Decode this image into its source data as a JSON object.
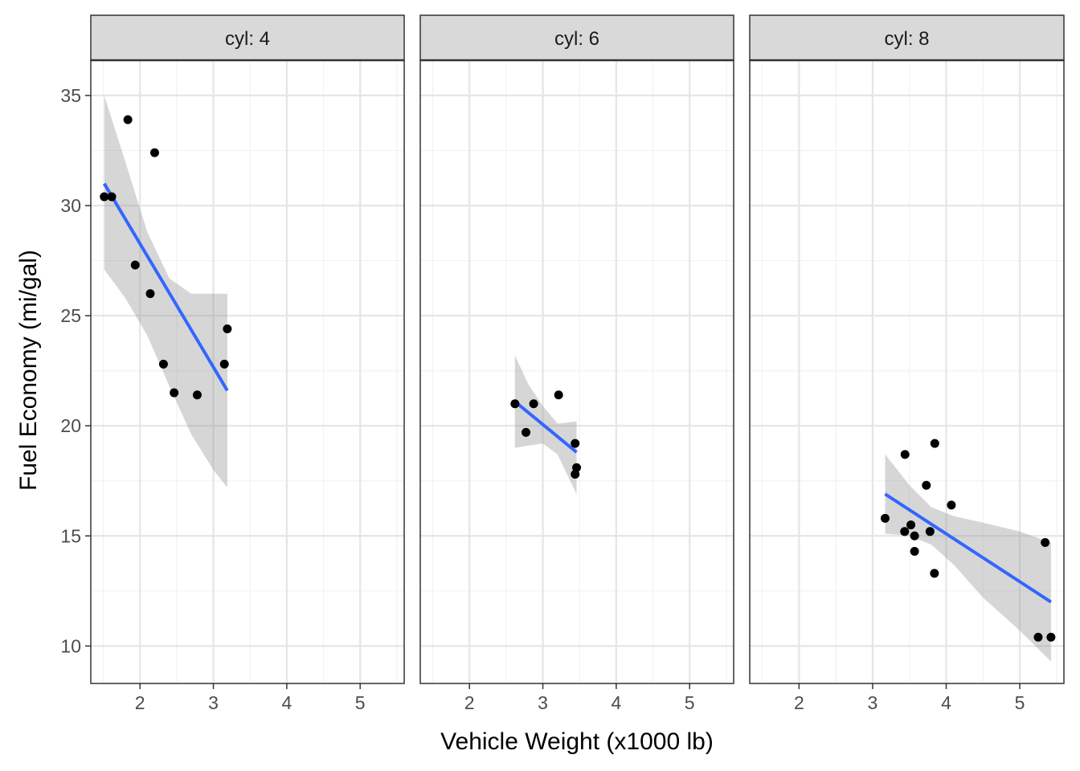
{
  "chart_data": {
    "type": "scatter",
    "xlabel": "Vehicle Weight (x1000 lb)",
    "ylabel": "Fuel Economy (mi/gal)",
    "xlim": [
      1.33,
      5.6
    ],
    "ylim": [
      8.3,
      36.6
    ],
    "x_ticks": [
      2,
      3,
      4,
      5
    ],
    "y_ticks": [
      10,
      15,
      20,
      25,
      30,
      35
    ],
    "grid": true,
    "theme": "black-and-white",
    "colors": {
      "point": "#000000",
      "fit_line": "#3366FF",
      "ribbon": "#999999",
      "strip_fill": "#D9D9D9",
      "grid_major": "#E5E5E5",
      "grid_minor": "#F2F2F2"
    },
    "facets": [
      {
        "strip_label": "cyl: 4",
        "points": [
          [
            1.513,
            30.4
          ],
          [
            1.615,
            30.4
          ],
          [
            1.835,
            33.9
          ],
          [
            1.935,
            27.3
          ],
          [
            2.14,
            26.0
          ],
          [
            2.2,
            32.4
          ],
          [
            2.32,
            22.8
          ],
          [
            2.465,
            21.5
          ],
          [
            2.78,
            21.4
          ],
          [
            3.15,
            22.8
          ],
          [
            3.19,
            24.4
          ]
        ],
        "fit": {
          "x": [
            1.513,
            3.19
          ],
          "y": [
            31.0,
            21.6
          ]
        },
        "ribbon": {
          "x": [
            1.513,
            1.8,
            2.1,
            2.4,
            2.7,
            3.0,
            3.19
          ],
          "lower": [
            27.1,
            25.8,
            24.1,
            21.8,
            19.6,
            18.0,
            17.2
          ],
          "upper": [
            35.0,
            32.0,
            28.8,
            26.7,
            26.0,
            26.0,
            26.0
          ]
        }
      },
      {
        "strip_label": "cyl: 6",
        "points": [
          [
            2.62,
            21.0
          ],
          [
            2.77,
            19.7
          ],
          [
            2.875,
            21.0
          ],
          [
            3.215,
            21.4
          ],
          [
            3.44,
            19.2
          ],
          [
            3.44,
            17.8
          ],
          [
            3.46,
            18.1
          ]
        ],
        "fit": {
          "x": [
            2.62,
            3.46
          ],
          "y": [
            21.1,
            18.8
          ]
        },
        "ribbon": {
          "x": [
            2.62,
            2.8,
            3.0,
            3.2,
            3.46
          ],
          "lower": [
            19.0,
            19.1,
            19.2,
            18.7,
            16.9
          ],
          "upper": [
            23.2,
            21.9,
            20.9,
            20.1,
            20.2
          ]
        }
      },
      {
        "strip_label": "cyl: 8",
        "points": [
          [
            3.17,
            15.8
          ],
          [
            3.435,
            15.2
          ],
          [
            3.44,
            18.7
          ],
          [
            3.52,
            15.5
          ],
          [
            3.57,
            15.0
          ],
          [
            3.57,
            14.3
          ],
          [
            3.73,
            17.3
          ],
          [
            3.78,
            15.2
          ],
          [
            3.84,
            13.3
          ],
          [
            3.845,
            19.2
          ],
          [
            4.07,
            16.4
          ],
          [
            5.25,
            10.4
          ],
          [
            5.345,
            14.7
          ],
          [
            5.424,
            10.4
          ]
        ],
        "fit": {
          "x": [
            3.17,
            5.424
          ],
          "y": [
            16.9,
            12.0
          ]
        },
        "ribbon": {
          "x": [
            3.17,
            3.5,
            3.8,
            4.1,
            4.5,
            5.0,
            5.424
          ],
          "lower": [
            15.1,
            15.0,
            14.6,
            13.7,
            12.2,
            10.7,
            9.3
          ],
          "upper": [
            18.7,
            17.3,
            16.3,
            15.9,
            15.6,
            15.2,
            14.7
          ]
        }
      }
    ]
  }
}
